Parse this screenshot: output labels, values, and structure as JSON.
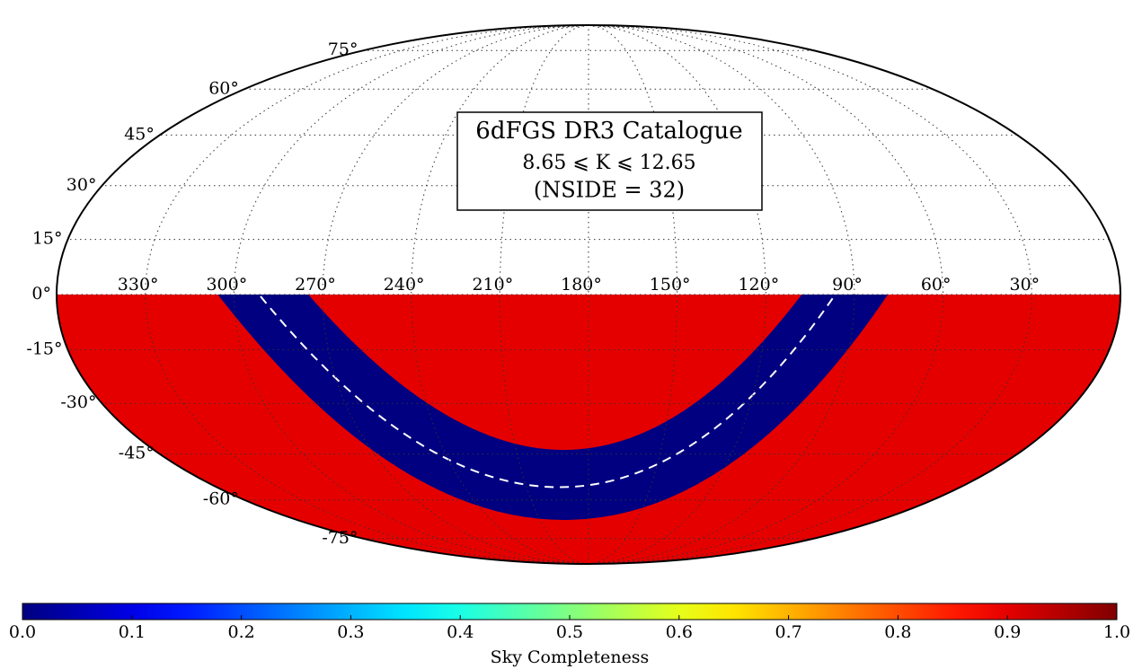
{
  "chart_data": {
    "type": "map",
    "projection": "mollweide",
    "title": "6dFGS DR3 Catalogue",
    "subtitle": "8.65 ⩽ K ⩽ 12.65",
    "annotation": "(NSIDE = 32)",
    "colormap": "jet",
    "colorbar_label": "Sky Completeness",
    "clim": [
      0,
      1
    ],
    "cticks": [
      {
        "value": 0,
        "label": "0.0"
      },
      0.1,
      0.2,
      0.3,
      0.4,
      0.5,
      0.6,
      0.7,
      0.8,
      0.9,
      {
        "value": 1,
        "label": "1.0"
      }
    ],
    "lon_ticks": [
      {
        "value": 330,
        "label": "330°"
      },
      {
        "value": 300,
        "label": "300°"
      },
      {
        "value": 270,
        "label": "270°"
      },
      {
        "value": 240,
        "label": "240°"
      },
      {
        "value": 210,
        "label": "210°"
      },
      {
        "value": 180,
        "label": "180°"
      },
      {
        "value": 150,
        "label": "150°"
      },
      {
        "value": 120,
        "label": "120°"
      },
      {
        "value": 90,
        "label": "90°"
      },
      {
        "value": 60,
        "label": "60°"
      },
      {
        "value": 30,
        "label": "30°"
      }
    ],
    "lat_ticks": [
      {
        "value": 75,
        "label": "75°"
      },
      {
        "value": 60,
        "label": "60°"
      },
      {
        "value": 45,
        "label": "45°"
      },
      {
        "value": 30,
        "label": "30°"
      },
      {
        "value": 15,
        "label": "15°"
      },
      {
        "value": 0,
        "label": "0°"
      },
      {
        "value": -15,
        "label": "-15°"
      },
      {
        "value": -30,
        "label": "-30°"
      },
      {
        "value": -45,
        "label": "-45°"
      },
      {
        "value": -60,
        "label": "-60°"
      },
      {
        "value": -75,
        "label": "-75°"
      }
    ],
    "regions": [
      {
        "value": 0.9
      },
      {
        "value": 0
      }
    ]
  }
}
